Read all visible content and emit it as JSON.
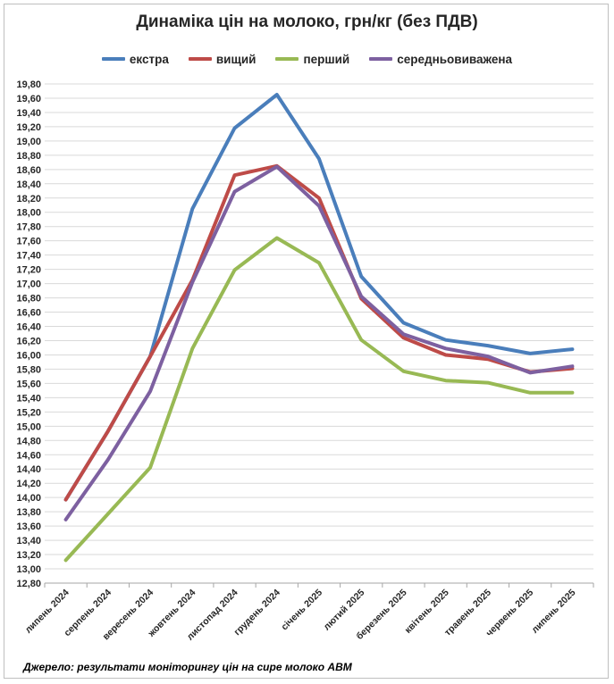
{
  "chart_data": {
    "type": "line",
    "title": "Динаміка цін на молоко, грн/кг (без ПДВ)",
    "xlabel": "",
    "ylabel": "",
    "categories": [
      "липень 2024",
      "серпень 2024",
      "вересень 2024",
      "жовтень 2024",
      "листопад 2024",
      "грудень 2024",
      "січень 2025",
      "лютий 2025",
      "березень 2025",
      "квітень 2025",
      "травень 2025",
      "червень 2025",
      "липень 2025"
    ],
    "ylim": [
      12.8,
      19.8
    ],
    "ytick_step": 0.2,
    "grid": true,
    "legend_position": "top",
    "series": [
      {
        "name": "екстра",
        "color": "#4a7ebb",
        "values": [
          13.97,
          14.93,
          15.98,
          18.05,
          19.18,
          19.65,
          18.75,
          17.1,
          16.45,
          16.21,
          16.13,
          16.02,
          16.08
        ]
      },
      {
        "name": "вищий",
        "color": "#be4b48",
        "values": [
          13.97,
          14.93,
          15.98,
          17.05,
          18.52,
          18.65,
          18.2,
          16.79,
          16.24,
          16.0,
          15.94,
          15.76,
          15.81
        ]
      },
      {
        "name": "перший",
        "color": "#98b954",
        "values": [
          13.12,
          13.77,
          14.42,
          16.09,
          17.19,
          17.64,
          17.29,
          16.21,
          15.77,
          15.64,
          15.61,
          15.47,
          15.47
        ]
      },
      {
        "name": "середньовиважена",
        "color": "#7d60a0",
        "values": [
          13.69,
          14.53,
          15.49,
          17.02,
          18.29,
          18.64,
          18.09,
          16.82,
          16.29,
          16.09,
          15.98,
          15.75,
          15.84
        ]
      }
    ]
  },
  "source": "Джерело: результати моніторингу цін на сире молоко АВМ"
}
